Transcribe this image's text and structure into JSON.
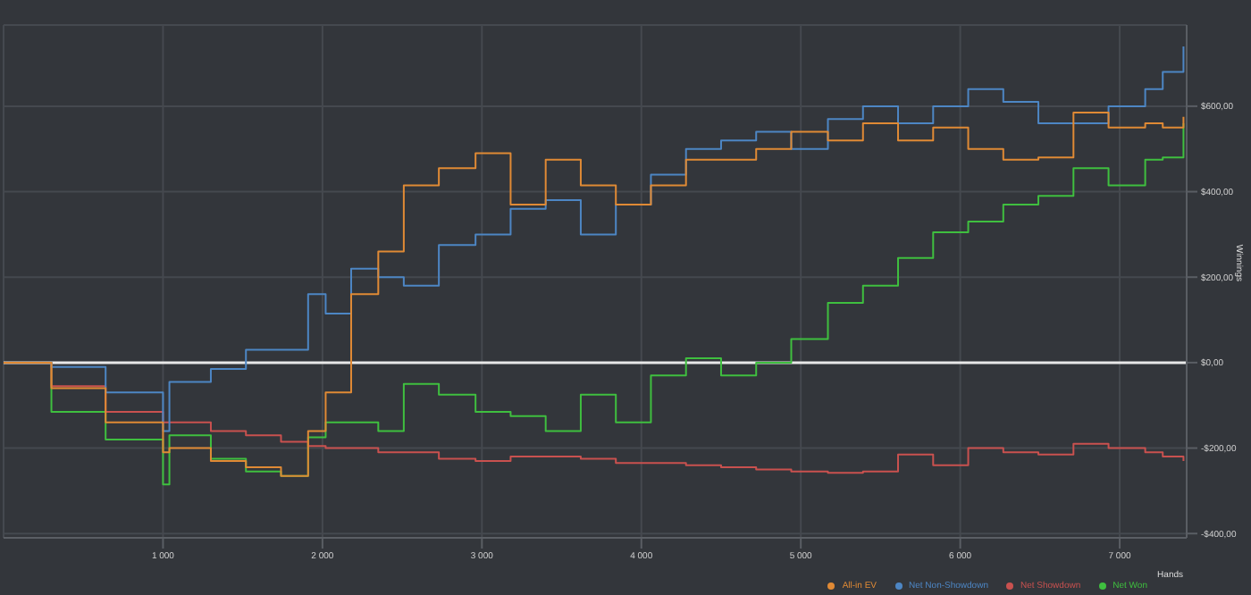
{
  "chart_data": {
    "type": "step",
    "xlabel": "Hands",
    "ylabel": "Winnings",
    "x": [
      0,
      300,
      640,
      1000,
      1040,
      1300,
      1520,
      1740,
      1910,
      2020,
      2180,
      2350,
      2510,
      2730,
      2960,
      3180,
      3400,
      3620,
      3840,
      4060,
      4280,
      4500,
      4720,
      4940,
      5170,
      5390,
      5610,
      5830,
      6050,
      6270,
      6490,
      6710,
      6930,
      7160,
      7270,
      7400
    ],
    "series": [
      {
        "name": "Net Won",
        "color": "#3fbf3f",
        "values": [
          0,
          -115,
          -180,
          -285,
          -170,
          -225,
          -255,
          -265,
          -175,
          -140,
          -140,
          -160,
          -50,
          -75,
          -115,
          -125,
          -160,
          -75,
          -140,
          -30,
          10,
          -30,
          0,
          55,
          140,
          180,
          245,
          305,
          330,
          370,
          390,
          455,
          415,
          475,
          480,
          560
        ]
      },
      {
        "name": "Net Showdown",
        "color": "#c9514f",
        "values": [
          0,
          -55,
          -115,
          -140,
          -140,
          -160,
          -170,
          -185,
          -195,
          -200,
          -200,
          -210,
          -210,
          -225,
          -230,
          -220,
          -220,
          -225,
          -235,
          -235,
          -240,
          -245,
          -250,
          -255,
          -258,
          -255,
          -215,
          -240,
          -200,
          -210,
          -215,
          -190,
          -200,
          -210,
          -220,
          -230
        ]
      },
      {
        "name": "Net Non-Showdown",
        "color": "#4d86c4",
        "values": [
          0,
          -10,
          -70,
          -160,
          -45,
          -15,
          30,
          30,
          160,
          115,
          220,
          200,
          180,
          275,
          300,
          360,
          380,
          300,
          370,
          440,
          500,
          520,
          540,
          500,
          570,
          600,
          560,
          600,
          640,
          610,
          560,
          560,
          600,
          640,
          680,
          740
        ]
      },
      {
        "name": "All-in EV",
        "color": "#e08a35",
        "values": [
          0,
          -60,
          -140,
          -210,
          -200,
          -230,
          -245,
          -265,
          -160,
          -70,
          160,
          260,
          415,
          455,
          490,
          370,
          475,
          415,
          370,
          415,
          475,
          475,
          500,
          540,
          520,
          560,
          520,
          550,
          500,
          475,
          480,
          585,
          550,
          560,
          550,
          575
        ]
      }
    ],
    "xlim": [
      0,
      7420
    ],
    "ylim": [
      -410,
      790
    ],
    "xticks": [
      {
        "value": 1000,
        "label": "1 000"
      },
      {
        "value": 2000,
        "label": "2 000"
      },
      {
        "value": 3000,
        "label": "3 000"
      },
      {
        "value": 4000,
        "label": "4 000"
      },
      {
        "value": 5000,
        "label": "5 000"
      },
      {
        "value": 6000,
        "label": "6 000"
      },
      {
        "value": 7000,
        "label": "7 000"
      }
    ],
    "yticks": [
      {
        "value": -400,
        "label": "-$400,00"
      },
      {
        "value": -200,
        "label": "-$200,00"
      },
      {
        "value": 0,
        "label": "$0,00"
      },
      {
        "value": 200,
        "label": "$200,00"
      },
      {
        "value": 400,
        "label": "$400,00"
      },
      {
        "value": 600,
        "label": "$600,00"
      }
    ],
    "ref_lines": [
      {
        "axis": "y",
        "value": 0,
        "color": "#e8e8e8"
      }
    ],
    "grid": true,
    "legend": "bottom right"
  }
}
